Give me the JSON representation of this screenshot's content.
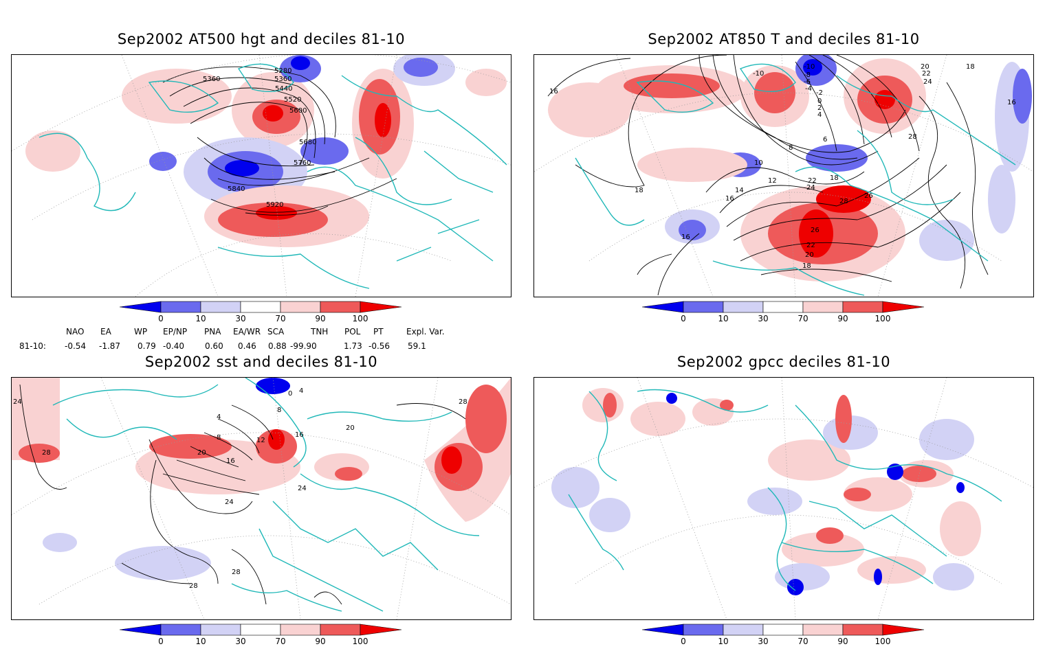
{
  "panels": [
    {
      "title": "Sep2002 AT500 hgt and deciles 81-10",
      "contour_labels": [
        "5280",
        "5360",
        "5360",
        "5440",
        "5520",
        "5600",
        "5680",
        "5760",
        "5840",
        "5920"
      ]
    },
    {
      "title": "Sep2002 AT850 T and deciles 81-10",
      "contour_labels": [
        "-10",
        "-10",
        "-8",
        "-6",
        "-4",
        "-2",
        "0",
        "2",
        "4",
        "6",
        "8",
        "10",
        "12",
        "14",
        "16",
        "16",
        "16",
        "16",
        "18",
        "18",
        "18",
        "18",
        "20",
        "20",
        "22",
        "22",
        "22",
        "24",
        "24",
        "26",
        "26",
        "28",
        "28"
      ]
    },
    {
      "title": "Sep2002 sst and deciles 81-10",
      "contour_labels": [
        "24",
        "28",
        "0",
        "4",
        "8",
        "8",
        "4",
        "12",
        "16",
        "16",
        "20",
        "20",
        "24",
        "24",
        "28",
        "28",
        "28"
      ]
    },
    {
      "title": "Sep2002 gpcc deciles 81-10",
      "contour_labels": []
    }
  ],
  "colorbar": {
    "ticks": [
      "0",
      "10",
      "30",
      "70",
      "90",
      "100"
    ],
    "colors": {
      "blue_dark": "#0000ee",
      "blue_mid": "#6a6aee",
      "blue_light": "#d2d2f5",
      "red_light": "#f9d2d2",
      "red_mid": "#ee5a5a",
      "red_dark": "#ee0000"
    }
  },
  "indices": {
    "header": [
      "NAO",
      "EA",
      "WP",
      "EP/NP",
      "PNA",
      "EA/WR",
      "SCA",
      "TNH",
      "POL",
      "PT",
      "Expl. Var."
    ],
    "row_label": "81-10:",
    "values": [
      "-0.54",
      "-1.87",
      "0.79",
      "-0.40",
      "0.60",
      "0.46",
      "0.88",
      "-99.90",
      "1.73",
      "-0.56",
      "59.1"
    ]
  },
  "map_colors": {
    "coast": "#20b8b8",
    "contour": "#000000",
    "grid": "#9a9a9a"
  }
}
